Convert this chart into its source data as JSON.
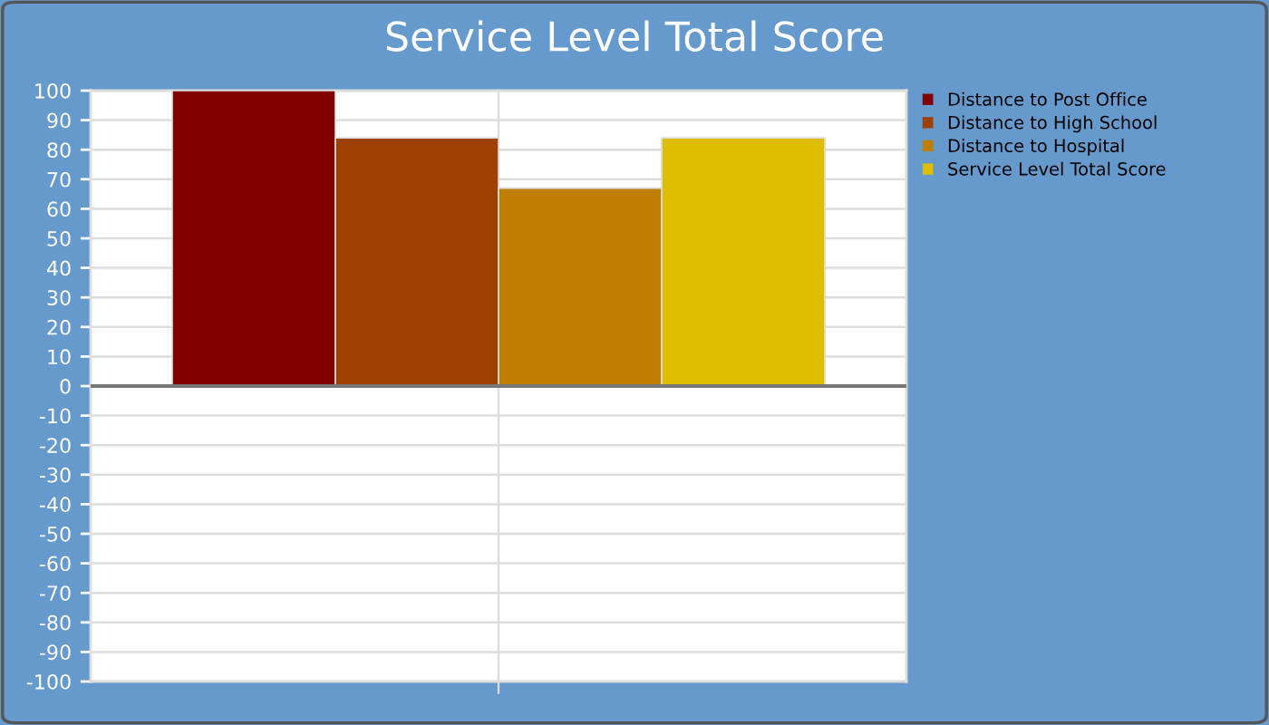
{
  "chart_data": {
    "type": "bar",
    "title": "Service Level Total Score",
    "categories": [
      null
    ],
    "series": [
      {
        "name": "Distance to Post Office",
        "color": "#800000",
        "values": [
          100
        ]
      },
      {
        "name": "Distance to High School",
        "color": "#9e4100",
        "values": [
          84
        ]
      },
      {
        "name": "Distance to Hospital",
        "color": "#bf7e00",
        "values": [
          67
        ]
      },
      {
        "name": "Service Level Total Score",
        "color": "#debe00",
        "values": [
          84
        ]
      }
    ],
    "ylim": [
      -100,
      100
    ],
    "yticks": [
      -100,
      -90,
      -80,
      -70,
      -60,
      -50,
      -40,
      -30,
      -20,
      -10,
      0,
      10,
      20,
      30,
      40,
      50,
      60,
      70,
      80,
      90,
      100
    ],
    "grid": true,
    "legend": "right"
  }
}
